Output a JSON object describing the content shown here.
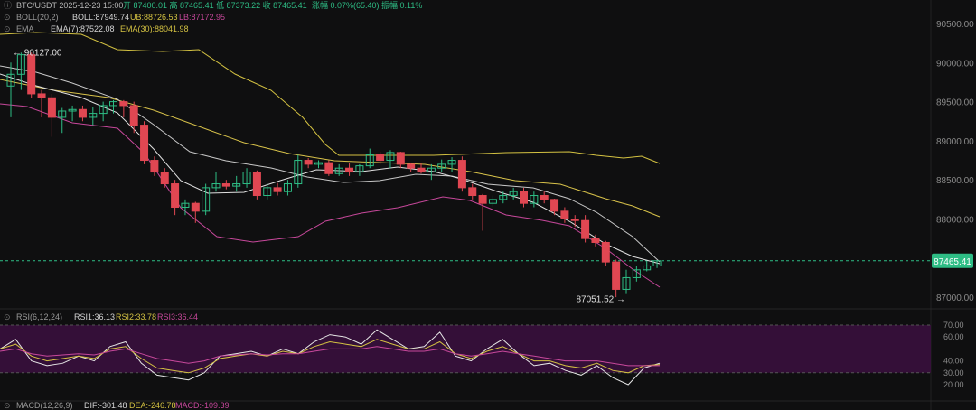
{
  "header": {
    "symbol": "BTC/USDT",
    "datetime": "2025-12-23 15:00",
    "open_label": "开",
    "open": "87400.01",
    "high_label": "高",
    "high": "87465.41",
    "low_label": "低",
    "low": "87373.22",
    "close_label": "收",
    "close": "87465.41",
    "change_label": "涨幅",
    "change": "0.07%(65.40)",
    "amp_label": "振幅",
    "amp": "0.11%"
  },
  "indicators": {
    "boll": {
      "label": "BOLL(20,2)",
      "boll": "BOLL:87949.74",
      "ub": "UB:88726.53",
      "lb": "LB:87172.95"
    },
    "ema": {
      "label": "EMA",
      "ema7": "EMA(7):87522.08",
      "ema30": "EMA(30):88041.98"
    },
    "rsi": {
      "label": "RSI(6,12,24)",
      "rsi1": "RSI1:36.13",
      "rsi2": "RSI2:33.78",
      "rsi3": "RSI3:36.44"
    },
    "macd": {
      "label": "MACD(12,26,9)",
      "dif": "DIF:-301.48",
      "dea": "DEA:-246.78",
      "macd": "MACD:-109.39"
    }
  },
  "price_axis": [
    "90500.00",
    "90000.00",
    "89500.00",
    "89000.00",
    "88500.00",
    "88000.00",
    "87000.00"
  ],
  "current_price": "87465.41",
  "annotations": {
    "high": "90127.00",
    "low": "87051.52"
  },
  "rsi_axis": [
    "70.00",
    "60.00",
    "40.00",
    "30.00",
    "20.00"
  ],
  "colors": {
    "up": "#2ebd85",
    "down": "#e04752",
    "boll_mid": "#c8c8c8",
    "boll_ub": "#d4c242",
    "boll_lb": "#c7489b",
    "ema7": "#e0e0e0",
    "ema30": "#d8c24a",
    "rsi_band": "#3b0f3f",
    "price_tag": "#2ebd85"
  },
  "chart_data": {
    "type": "candlestick",
    "ylim": [
      86800,
      90750
    ],
    "candles": [
      [
        89700,
        90000,
        89300,
        89850
      ],
      [
        89850,
        90127,
        89650,
        90100
      ],
      [
        90100,
        90127,
        89550,
        89600
      ],
      [
        89600,
        89650,
        89300,
        89550
      ],
      [
        89550,
        89600,
        89050,
        89300
      ],
      [
        89300,
        89420,
        89100,
        89380
      ],
      [
        89380,
        89450,
        89250,
        89400
      ],
      [
        89400,
        89450,
        89250,
        89300
      ],
      [
        89300,
        89430,
        89200,
        89350
      ],
      [
        89350,
        89500,
        89250,
        89450
      ],
      [
        89450,
        89520,
        89350,
        89500
      ],
      [
        89500,
        89520,
        89300,
        89450
      ],
      [
        89450,
        89500,
        89100,
        89200
      ],
      [
        89200,
        89250,
        88700,
        88750
      ],
      [
        88750,
        88800,
        88550,
        88600
      ],
      [
        88600,
        88650,
        88400,
        88450
      ],
      [
        88450,
        88500,
        88050,
        88150
      ],
      [
        88150,
        88250,
        88050,
        88200
      ],
      [
        88200,
        88220,
        87950,
        88100
      ],
      [
        88100,
        88450,
        88050,
        88400
      ],
      [
        88400,
        88600,
        88350,
        88450
      ],
      [
        88450,
        88500,
        88380,
        88420
      ],
      [
        88420,
        88550,
        88350,
        88450
      ],
      [
        88450,
        88650,
        88400,
        88600
      ],
      [
        88600,
        88620,
        88250,
        88300
      ],
      [
        88300,
        88450,
        88250,
        88400
      ],
      [
        88400,
        88460,
        88300,
        88350
      ],
      [
        88350,
        88500,
        88300,
        88450
      ],
      [
        88450,
        88820,
        88400,
        88750
      ],
      [
        88750,
        88780,
        88650,
        88700
      ],
      [
        88700,
        88750,
        88650,
        88720
      ],
      [
        88720,
        88750,
        88550,
        88580
      ],
      [
        88580,
        88700,
        88550,
        88650
      ],
      [
        88650,
        88720,
        88550,
        88600
      ],
      [
        88600,
        88700,
        88550,
        88680
      ],
      [
        88680,
        88900,
        88650,
        88820
      ],
      [
        88820,
        88860,
        88700,
        88750
      ],
      [
        88750,
        88880,
        88650,
        88850
      ],
      [
        88850,
        88860,
        88650,
        88700
      ],
      [
        88700,
        88720,
        88600,
        88650
      ],
      [
        88650,
        88720,
        88580,
        88600
      ],
      [
        88600,
        88700,
        88500,
        88650
      ],
      [
        88650,
        88760,
        88600,
        88700
      ],
      [
        88700,
        88790,
        88600,
        88750
      ],
      [
        88750,
        88800,
        88350,
        88400
      ],
      [
        88400,
        88450,
        88250,
        88300
      ],
      [
        88300,
        88320,
        87850,
        88200
      ],
      [
        88200,
        88300,
        88150,
        88250
      ],
      [
        88250,
        88350,
        88200,
        88300
      ],
      [
        88300,
        88400,
        88250,
        88350
      ],
      [
        88350,
        88400,
        88150,
        88200
      ],
      [
        88200,
        88350,
        88150,
        88300
      ],
      [
        88300,
        88350,
        88200,
        88250
      ],
      [
        88250,
        88260,
        88050,
        88100
      ],
      [
        88100,
        88150,
        87950,
        88000
      ],
      [
        88000,
        88050,
        87900,
        87980
      ],
      [
        87980,
        88050,
        87700,
        87750
      ],
      [
        87750,
        87800,
        87650,
        87700
      ],
      [
        87700,
        87720,
        87400,
        87450
      ],
      [
        87450,
        87480,
        87000,
        87100
      ],
      [
        87100,
        87350,
        87051.52,
        87250
      ],
      [
        87250,
        87400,
        87200,
        87350
      ],
      [
        87350,
        87465,
        87330,
        87400
      ],
      [
        87400,
        87465.41,
        87373.22,
        87465.41
      ]
    ]
  }
}
